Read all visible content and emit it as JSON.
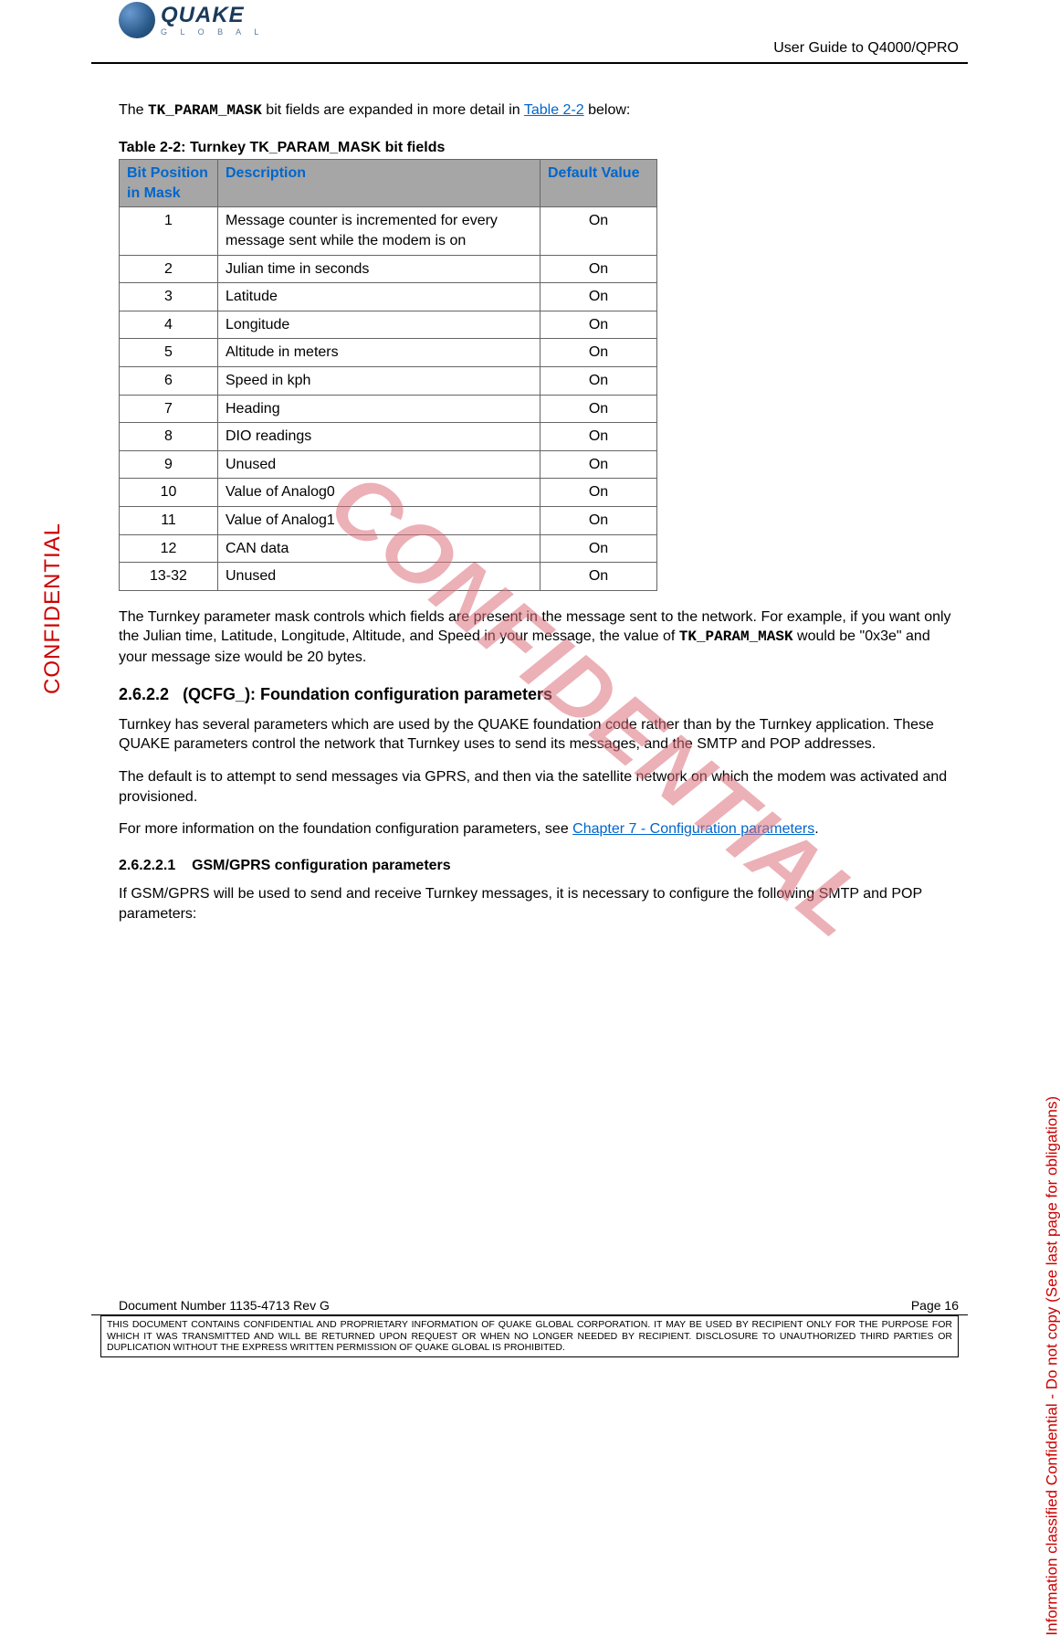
{
  "header": {
    "logo_main": "QUAKE",
    "logo_sub": "G L O B A L",
    "title_right": "User Guide to Q4000/QPRO"
  },
  "intro": {
    "prefix": "The ",
    "code": "TK_PARAM_MASK",
    "mid": "  bit fields are expanded in more detail in ",
    "link": "Table 2-2",
    "suffix": " below:"
  },
  "table_caption": "Table 2-2:  Turnkey TK_PARAM_MASK bit fields",
  "table": {
    "headers": [
      "Bit Position in Mask",
      "Description",
      "Default Value"
    ],
    "rows": [
      [
        "1",
        "Message counter is incremented for every message sent while the modem is on",
        "On"
      ],
      [
        "2",
        "Julian time in seconds",
        "On"
      ],
      [
        "3",
        "Latitude",
        "On"
      ],
      [
        "4",
        "Longitude",
        "On"
      ],
      [
        "5",
        "Altitude in meters",
        "On"
      ],
      [
        "6",
        "Speed in kph",
        "On"
      ],
      [
        "7",
        "Heading",
        "On"
      ],
      [
        "8",
        "DIO readings",
        "On"
      ],
      [
        "9",
        "Unused",
        "On"
      ],
      [
        "10",
        "Value of Analog0",
        "On"
      ],
      [
        "11",
        "Value of Analog1",
        "On"
      ],
      [
        "12",
        "CAN data",
        "On"
      ],
      [
        "13-32",
        "Unused",
        "On"
      ]
    ]
  },
  "para_mask": {
    "p1a": "The Turnkey parameter mask controls which fields are present in the message sent to the network.  For example, if you want only the Julian time, Latitude, Longitude, Altitude, and Speed in your message, the value of ",
    "p1code": "TK_PARAM_MASK",
    "p1b": " would be \"0x3e\" and your message size would be 20 bytes."
  },
  "section_2622": {
    "num": "2.6.2.2",
    "title": "(QCFG_): Foundation configuration parameters",
    "p1": "Turnkey has several parameters which are used by the QUAKE foundation code rather than by the Turnkey application.  These QUAKE parameters control the network that Turnkey uses to send its messages, and the SMTP and POP addresses.",
    "p2": "The default is to attempt to send messages via GPRS, and then via the satellite network on which the modem was activated and provisioned.",
    "p3a": "For more information on the foundation configuration parameters, see ",
    "p3link": "Chapter 7 - Configuration parameters",
    "p3b": "."
  },
  "section_26221": {
    "num": "2.6.2.2.1",
    "title": "GSM/GPRS configuration parameters",
    "p1": "If GSM/GPRS will be used to send and receive Turnkey messages, it is necessary to configure the following SMTP and POP parameters:"
  },
  "watermark": "CONFIDENTIAL",
  "side_left": "CONFIDENTIAL",
  "side_right": "Information classified Confidential - Do not copy (See last page for obligations)",
  "footer": {
    "doc": "Document Number 1135-4713   Rev G",
    "page": "Page 16",
    "disclaimer": "THIS DOCUMENT CONTAINS CONFIDENTIAL AND PROPRIETARY INFORMATION OF QUAKE GLOBAL CORPORATION.  IT MAY BE USED BY RECIPIENT ONLY FOR THE PURPOSE FOR WHICH IT WAS TRANSMITTED AND WILL BE RETURNED UPON REQUEST OR WHEN NO LONGER NEEDED BY RECIPIENT.  DISCLOSURE TO UNAUTHORIZED THIRD PARTIES OR DUPLICATION WITHOUT THE EXPRESS WRITTEN PERMISSION OF QUAKE GLOBAL IS PROHIBITED."
  }
}
